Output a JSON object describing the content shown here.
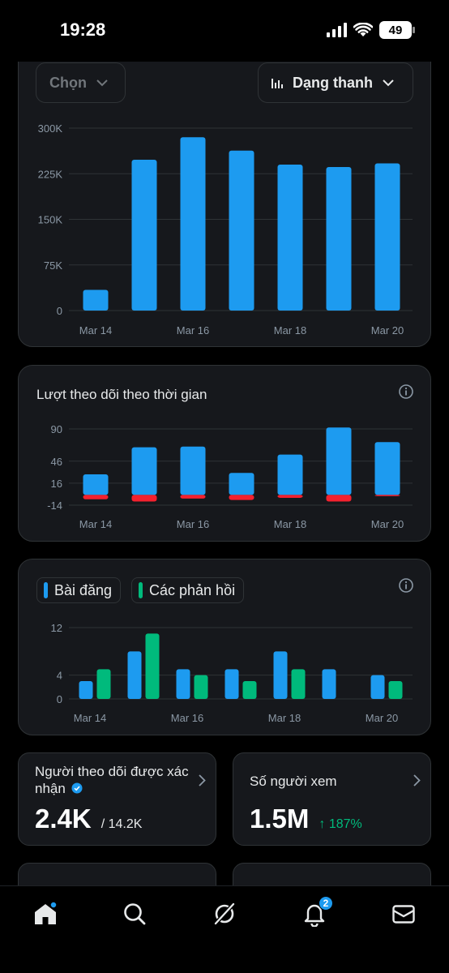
{
  "status_bar": {
    "time": "19:28",
    "battery": "49"
  },
  "top_card": {
    "filter_label": "Chọn",
    "chart_type_label": "Dạng thanh"
  },
  "followers_card": {
    "title": "Lượt theo dõi theo thời gian"
  },
  "posts_card": {
    "legend_posts": "Bài đăng",
    "legend_replies": "Các phản hồi"
  },
  "stats": {
    "verified_followers": {
      "label": "Người theo dõi được xác nhận",
      "value": "2.4K",
      "total": "/ 14.2K"
    },
    "viewers": {
      "label": "Số người xem",
      "value": "1.5M",
      "change": "↑ 187%"
    }
  },
  "nav": {
    "notifications_badge": "2"
  },
  "colors": {
    "blue": "#1d9bf0",
    "red": "#f4212e",
    "green": "#00ba7c",
    "card_bg": "#16181c",
    "border": "#2f3336"
  },
  "chart_data": [
    {
      "type": "bar",
      "x_tick_labels": [
        "Mar 14",
        "Mar 16",
        "Mar 18",
        "Mar 20"
      ],
      "y_tick_labels": [
        "300K",
        "225K",
        "150K",
        "75K",
        "0"
      ],
      "ylim": [
        0,
        300000
      ],
      "values": [
        34000,
        248000,
        285000,
        263000,
        240000,
        236000,
        242000
      ],
      "grid": true
    },
    {
      "type": "bar",
      "x_tick_labels": [
        "Mar 14",
        "Mar 16",
        "Mar 18",
        "Mar 20"
      ],
      "y_tick_labels": [
        "90",
        "46",
        "16",
        "-14"
      ],
      "ylim": [
        -14,
        90
      ],
      "series": [
        {
          "values": [
            28,
            65,
            66,
            30,
            55,
            92,
            72
          ]
        },
        {
          "values": [
            -6,
            -9,
            -5,
            -7,
            -4,
            -9,
            -1
          ]
        }
      ],
      "grid": true
    },
    {
      "type": "bar",
      "x_tick_labels": [
        "Mar 14",
        "Mar 16",
        "Mar 18",
        "Mar 20"
      ],
      "y_tick_labels": [
        "12",
        "4",
        "0"
      ],
      "ylim": [
        0,
        12
      ],
      "series": [
        {
          "name": "Bài đăng",
          "values": [
            3,
            8,
            5,
            5,
            8,
            5,
            4
          ]
        },
        {
          "name": "Các phản hồi",
          "values": [
            5,
            11,
            4,
            3,
            5,
            0,
            3
          ]
        }
      ],
      "grid": true
    }
  ]
}
